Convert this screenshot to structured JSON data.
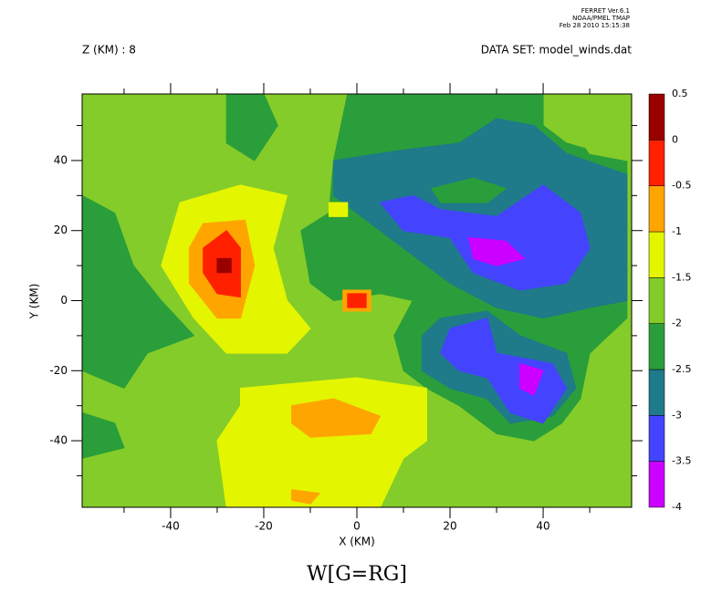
{
  "chart_data": {
    "type": "contour",
    "header": [
      "FERRET Ver.6.1",
      "NOAA/PMEL TMAP",
      "Feb 28 2010 15:15:38"
    ],
    "subtitle_left": "Z (KM) : 8",
    "subtitle_right": "DATA SET: model_winds.dat",
    "title": "W[G=RG]",
    "x_label": "X (KM)",
    "y_label": "Y (KM)",
    "xlim": [
      -59,
      59
    ],
    "ylim": [
      -59,
      59
    ],
    "xticks": [
      -40,
      -20,
      0,
      20,
      40
    ],
    "yticks": [
      -40,
      -20,
      0,
      20,
      40
    ],
    "xticks_minor": [
      -50,
      -30,
      -10,
      10,
      30,
      50
    ],
    "yticks_minor": [
      -50,
      -30,
      -10,
      10,
      30,
      50
    ],
    "levels": [
      -4,
      -3.5,
      -3,
      -2.5,
      -2,
      -1.5,
      -1,
      -0.5,
      0,
      0.5
    ],
    "colors": [
      "#cc00ff",
      "#4444ff",
      "#1f7a8a",
      "#2a9e3a",
      "#84cc2a",
      "#e4f500",
      "#ffa500",
      "#ff2000",
      "#990000"
    ],
    "background_level": -2,
    "contours": [
      {
        "level": -2.5,
        "points": [
          [
            -28,
            59
          ],
          [
            -20,
            59
          ],
          [
            -17,
            50
          ],
          [
            -22,
            40
          ],
          [
            -28,
            45
          ]
        ]
      },
      {
        "level": -2.5,
        "points": [
          [
            -2,
            59
          ],
          [
            40,
            59
          ],
          [
            40,
            50
          ],
          [
            45,
            45
          ],
          [
            58,
            40
          ],
          [
            58,
            -5
          ],
          [
            50,
            -15
          ],
          [
            48,
            -28
          ],
          [
            44,
            -35
          ],
          [
            38,
            -40
          ],
          [
            30,
            -38
          ],
          [
            22,
            -30
          ],
          [
            15,
            -25
          ],
          [
            10,
            -20
          ],
          [
            8,
            -10
          ],
          [
            12,
            0
          ],
          [
            5,
            2
          ],
          [
            -5,
            0
          ],
          [
            -10,
            5
          ],
          [
            -12,
            20
          ],
          [
            -6,
            25
          ],
          [
            -5,
            40
          ]
        ]
      },
      {
        "level": -2.5,
        "points": [
          [
            -59,
            30
          ],
          [
            -52,
            25
          ],
          [
            -48,
            10
          ],
          [
            -42,
            0
          ],
          [
            -35,
            -10
          ],
          [
            -45,
            -15
          ],
          [
            -50,
            -25
          ],
          [
            -59,
            -20
          ]
        ]
      },
      {
        "level": -2.5,
        "points": [
          [
            -59,
            -32
          ],
          [
            -52,
            -35
          ],
          [
            -50,
            -42
          ],
          [
            -59,
            -45
          ]
        ]
      },
      {
        "level": -2,
        "points": [
          [
            48,
            59
          ],
          [
            58,
            59
          ],
          [
            58,
            40
          ],
          [
            50,
            42
          ],
          [
            46,
            50
          ]
        ]
      },
      {
        "level": -3,
        "points": [
          [
            -5,
            40
          ],
          [
            10,
            43
          ],
          [
            22,
            45
          ],
          [
            30,
            52
          ],
          [
            38,
            50
          ],
          [
            45,
            42
          ],
          [
            58,
            36
          ],
          [
            58,
            0
          ],
          [
            50,
            -2
          ],
          [
            40,
            -5
          ],
          [
            30,
            -2
          ],
          [
            20,
            5
          ],
          [
            10,
            15
          ],
          [
            0,
            25
          ],
          [
            -5,
            30
          ]
        ]
      },
      {
        "level": -3,
        "points": [
          [
            18,
            -5
          ],
          [
            28,
            -3
          ],
          [
            35,
            -10
          ],
          [
            45,
            -15
          ],
          [
            47,
            -25
          ],
          [
            42,
            -33
          ],
          [
            33,
            -35
          ],
          [
            28,
            -28
          ],
          [
            20,
            -25
          ],
          [
            14,
            -20
          ],
          [
            14,
            -10
          ]
        ]
      },
      {
        "level": -2.5,
        "points": [
          [
            16,
            32
          ],
          [
            25,
            35
          ],
          [
            32,
            32
          ],
          [
            28,
            28
          ],
          [
            18,
            28
          ]
        ]
      },
      {
        "level": -3.5,
        "points": [
          [
            5,
            28
          ],
          [
            12,
            30
          ],
          [
            18,
            26
          ],
          [
            30,
            24
          ],
          [
            40,
            33
          ],
          [
            48,
            25
          ],
          [
            50,
            15
          ],
          [
            45,
            5
          ],
          [
            35,
            3
          ],
          [
            25,
            8
          ],
          [
            20,
            18
          ],
          [
            10,
            20
          ]
        ]
      },
      {
        "level": -3.5,
        "points": [
          [
            20,
            -8
          ],
          [
            28,
            -5
          ],
          [
            30,
            -15
          ],
          [
            42,
            -18
          ],
          [
            45,
            -25
          ],
          [
            40,
            -35
          ],
          [
            33,
            -32
          ],
          [
            28,
            -22
          ],
          [
            22,
            -20
          ],
          [
            18,
            -15
          ]
        ]
      },
      {
        "level": -4,
        "points": [
          [
            24,
            18
          ],
          [
            32,
            17
          ],
          [
            36,
            12
          ],
          [
            30,
            10
          ],
          [
            25,
            12
          ]
        ]
      },
      {
        "level": -4,
        "points": [
          [
            35,
            -18
          ],
          [
            40,
            -20
          ],
          [
            38,
            -27
          ],
          [
            35,
            -25
          ]
        ]
      },
      {
        "level": -1.5,
        "points": [
          [
            -42,
            10
          ],
          [
            -38,
            28
          ],
          [
            -25,
            33
          ],
          [
            -15,
            30
          ],
          [
            -18,
            15
          ],
          [
            -15,
            0
          ],
          [
            -10,
            -8
          ],
          [
            -15,
            -15
          ],
          [
            -28,
            -15
          ],
          [
            -35,
            -5
          ]
        ]
      },
      {
        "level": -1.5,
        "points": [
          [
            -25,
            -25
          ],
          [
            0,
            -22
          ],
          [
            15,
            -25
          ],
          [
            15,
            -40
          ],
          [
            10,
            -45
          ],
          [
            5,
            -59
          ],
          [
            -28,
            -59
          ],
          [
            -30,
            -40
          ],
          [
            -25,
            -30
          ]
        ]
      },
      {
        "level": -1.5,
        "points": [
          [
            -6,
            28
          ],
          [
            -2,
            28
          ],
          [
            -2,
            24
          ],
          [
            -6,
            24
          ]
        ]
      },
      {
        "level": -1,
        "points": [
          [
            -36,
            15
          ],
          [
            -33,
            22
          ],
          [
            -24,
            23
          ],
          [
            -22,
            10
          ],
          [
            -25,
            -5
          ],
          [
            -30,
            -5
          ],
          [
            -36,
            5
          ]
        ]
      },
      {
        "level": -1,
        "points": [
          [
            -14,
            -30
          ],
          [
            -5,
            -28
          ],
          [
            5,
            -33
          ],
          [
            3,
            -38
          ],
          [
            -10,
            -39
          ],
          [
            -14,
            -35
          ]
        ]
      },
      {
        "level": -1,
        "points": [
          [
            -14,
            -54
          ],
          [
            -8,
            -55
          ],
          [
            -10,
            -58
          ],
          [
            -14,
            -57
          ]
        ]
      },
      {
        "level": -1,
        "points": [
          [
            -3,
            3
          ],
          [
            3,
            3
          ],
          [
            3,
            -3
          ],
          [
            -3,
            -3
          ]
        ]
      },
      {
        "level": -0.5,
        "points": [
          [
            -33,
            15
          ],
          [
            -28,
            20
          ],
          [
            -25,
            15
          ],
          [
            -25,
            1
          ],
          [
            -30,
            2
          ],
          [
            -33,
            8
          ]
        ]
      },
      {
        "level": -0.5,
        "points": [
          [
            -2,
            2
          ],
          [
            2,
            2
          ],
          [
            2,
            -2
          ],
          [
            -2,
            -2
          ]
        ]
      },
      {
        "level": 0,
        "points": [
          [
            -30,
            12
          ],
          [
            -27,
            12
          ],
          [
            -27,
            8
          ],
          [
            -30,
            8
          ]
        ]
      }
    ]
  }
}
